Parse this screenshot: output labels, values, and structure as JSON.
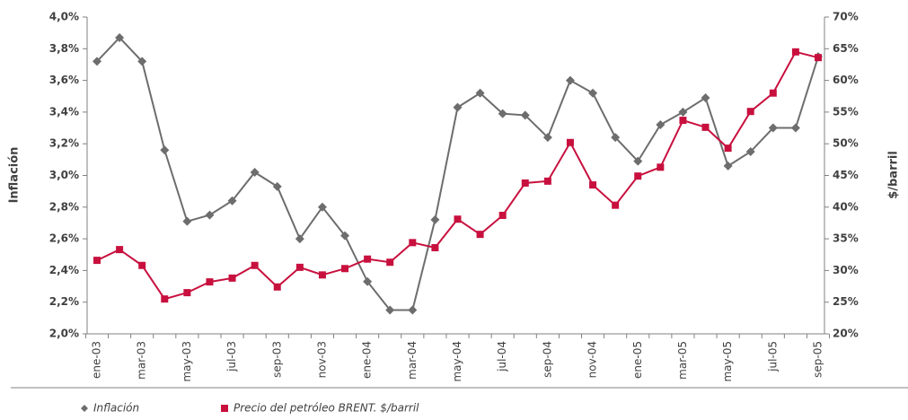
{
  "chart_data": {
    "type": "line",
    "categories": [
      "ene-03",
      null,
      "mar-03",
      null,
      "may-03",
      null,
      "jul-03",
      null,
      "sep-03",
      null,
      "nov-03",
      null,
      "ene-04",
      null,
      "mar-04",
      null,
      "may-04",
      null,
      "jul-04",
      null,
      "sep-04",
      null,
      "nov-04",
      null,
      "ene-05",
      null,
      "mar-05",
      null,
      "may-05",
      null,
      "jul-05",
      null,
      "sep-05"
    ],
    "y_label": "Inflación",
    "y2_label": "$/barril",
    "ylim": [
      2.0,
      4.0
    ],
    "yticks": [
      {
        "value": 2.0,
        "label": "2,0%"
      },
      {
        "value": 2.2,
        "label": "2,2%"
      },
      {
        "value": 2.4,
        "label": "2,4%"
      },
      {
        "value": 2.6,
        "label": "2,6%"
      },
      {
        "value": 2.8,
        "label": "2,8%"
      },
      {
        "value": 3.0,
        "label": "3,0%"
      },
      {
        "value": 3.2,
        "label": "3,2%"
      },
      {
        "value": 3.4,
        "label": "3,4%"
      },
      {
        "value": 3.6,
        "label": "3,6%"
      },
      {
        "value": 3.8,
        "label": "3,8%"
      },
      {
        "value": 4.0,
        "label": "4,0%"
      }
    ],
    "y2lim": [
      20,
      70
    ],
    "y2ticks": [
      {
        "value": 20,
        "label": "20%"
      },
      {
        "value": 25,
        "label": "25%"
      },
      {
        "value": 30,
        "label": "30%"
      },
      {
        "value": 35,
        "label": "35%"
      },
      {
        "value": 40,
        "label": "40%"
      },
      {
        "value": 45,
        "label": "45%"
      },
      {
        "value": 50,
        "label": "50%"
      },
      {
        "value": 55,
        "label": "55%"
      },
      {
        "value": 60,
        "label": "60%"
      },
      {
        "value": 65,
        "label": "65%"
      },
      {
        "value": 70,
        "label": "70%"
      }
    ],
    "series": [
      {
        "name": "Inflación",
        "color": "#6d6d6d",
        "marker": "diamond",
        "values": [
          3.72,
          3.87,
          3.72,
          3.16,
          2.71,
          2.75,
          2.84,
          3.02,
          2.93,
          2.6,
          2.8,
          2.62,
          2.33,
          2.15,
          2.15,
          2.72,
          3.43,
          3.52,
          3.39,
          3.38,
          3.24,
          3.6,
          3.52,
          3.24,
          3.09,
          3.32,
          3.4,
          3.49,
          3.06,
          3.15,
          3.3,
          3.3,
          3.75
        ]
      },
      {
        "name": "Precio del petróleo BRENT. $/barril",
        "color": "#c8103e",
        "marker": "square",
        "axis": "y2",
        "values": [
          31.6,
          33.3,
          30.8,
          25.5,
          26.5,
          28.2,
          28.8,
          30.8,
          27.4,
          30.5,
          29.3,
          30.3,
          31.8,
          31.3,
          34.4,
          33.6,
          38.1,
          35.7,
          38.7,
          43.8,
          44.1,
          50.2,
          43.5,
          40.3,
          44.9,
          46.3,
          53.7,
          52.6,
          49.3,
          55.1,
          58.0,
          64.5,
          63.6
        ]
      }
    ]
  }
}
